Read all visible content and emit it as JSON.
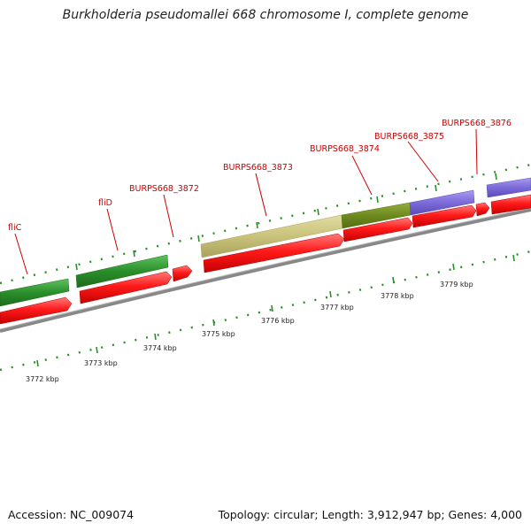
{
  "header": {
    "title": "Burkholderia pseudomallei 668 chromosome I, complete genome"
  },
  "footer": {
    "accession": "Accession: NC_009074",
    "topology": "Topology: circular; Length: 3,912,947 bp; Genes: 4,000"
  },
  "colors": {
    "cds": "#ff1a1a",
    "gene_green": "#2a8f2a",
    "gene_olive": "#c8c27a",
    "gene_darkolive": "#6e8a1e",
    "gene_purple": "#7b6ad8",
    "backbone": "#888888",
    "tick_green": "#2a8f2a",
    "label_red": "#cc0000"
  },
  "map": {
    "scale_labels": [
      "3772 kbp",
      "3773 kbp",
      "3774 kbp",
      "3775 kbp",
      "3776 kbp",
      "3777 kbp",
      "3778 kbp",
      "3779 kbp"
    ],
    "gene_labels": [
      "fliC",
      "fliD",
      "BURPS668_3872",
      "BURPS668_3873",
      "BURPS668_3874",
      "BURPS668_3875",
      "BURPS668_3876"
    ]
  }
}
